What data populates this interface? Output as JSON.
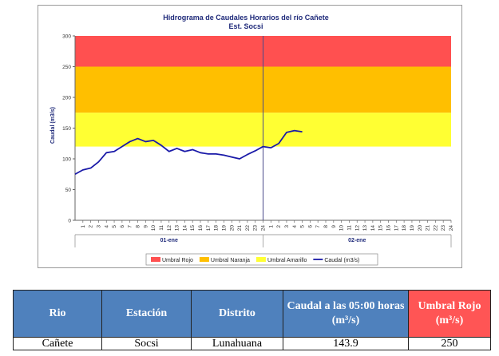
{
  "chart_data": {
    "type": "line",
    "title": "Hidrograma de Caudales Horarios del río Cañete",
    "subtitle": "Est. Socsi",
    "ylabel": "Caudal  (m3/s)",
    "ylim": [
      0,
      300
    ],
    "yticks": [
      "0",
      "50",
      "100",
      "150",
      "200",
      "250",
      "300"
    ],
    "day_labels": [
      "01-ene",
      "02-ene"
    ],
    "hour_ticks": [
      "1",
      "2",
      "3",
      "4",
      "5",
      "6",
      "7",
      "8",
      "9",
      "10",
      "11",
      "12",
      "13",
      "14",
      "15",
      "16",
      "17",
      "18",
      "19",
      "20",
      "21",
      "22",
      "23",
      "24"
    ],
    "bands": [
      {
        "name": "Umbral Rojo",
        "from": 250,
        "to": 300,
        "color": "#ff5050"
      },
      {
        "name": "Umbral Naranja",
        "from": 175,
        "to": 250,
        "color": "#ffbf00"
      },
      {
        "name": "Umbral Amarillo",
        "from": 120,
        "to": 175,
        "color": "#ffff33"
      }
    ],
    "series": [
      {
        "name": "Caudal (m3/s)",
        "color": "#1a1aa8",
        "x": [
          0,
          1,
          2,
          3,
          4,
          5,
          6,
          7,
          8,
          9,
          10,
          11,
          12,
          13,
          14,
          15,
          16,
          17,
          18,
          19,
          20,
          21,
          22,
          23,
          24,
          25,
          26,
          27,
          28,
          29
        ],
        "values": [
          75,
          82,
          85,
          95,
          110,
          112,
          120,
          128,
          133,
          128,
          130,
          122,
          112,
          117,
          112,
          115,
          110,
          108,
          108,
          106,
          103,
          100,
          107,
          113,
          120,
          118,
          125,
          143,
          146,
          144
        ]
      }
    ],
    "legend": [
      "Umbral Rojo",
      "Umbral Naranja",
      "Umbral Amarillo",
      "Caudal (m3/s)"
    ],
    "legend_position": "bottom",
    "grid": false
  },
  "table": {
    "headers": [
      "Rio",
      "Estación",
      "Distrito",
      "Caudal a las 05:00 horas (m³/s)",
      "Umbral Rojo (m³/s)"
    ],
    "row": [
      "Cañete",
      "Socsi",
      "Lunahuana",
      "143.9",
      "250"
    ]
  }
}
